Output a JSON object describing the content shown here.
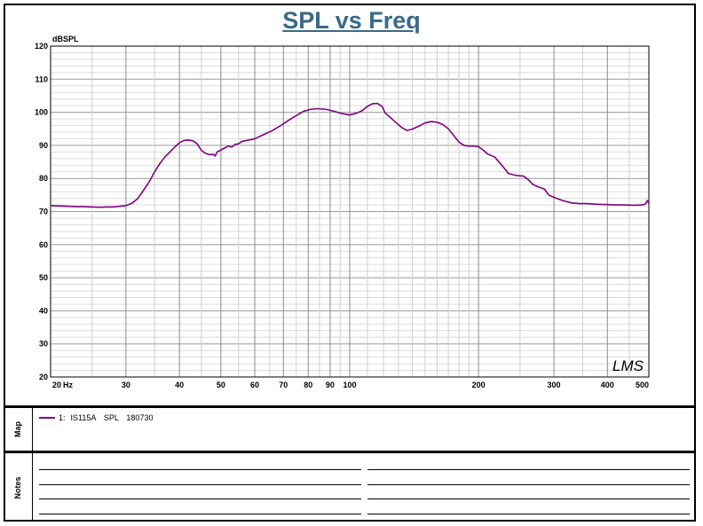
{
  "title": "SPL vs Freq",
  "watermark": "LMS",
  "map_label": "Map",
  "notes_label": "Notes",
  "legend": [
    {
      "index": "1:",
      "device": "IS115A",
      "measure": "SPL",
      "code": "180730",
      "color": "#800080"
    }
  ],
  "chart_data": {
    "type": "line",
    "title": "SPL vs Freq",
    "ylabel": "dBSPL",
    "xlabel": "Hz",
    "x_scale": "log",
    "xlim": [
      20,
      500
    ],
    "ylim": [
      20,
      120
    ],
    "grid": true,
    "y_ticks": [
      20,
      30,
      40,
      50,
      60,
      70,
      80,
      90,
      100,
      110,
      120
    ],
    "x_tick_labels": [
      {
        "value": 20,
        "label": "20"
      },
      {
        "value": 30,
        "label": "30"
      },
      {
        "value": 40,
        "label": "40"
      },
      {
        "value": 50,
        "label": "50"
      },
      {
        "value": 60,
        "label": "60"
      },
      {
        "value": 70,
        "label": "70"
      },
      {
        "value": 80,
        "label": "80"
      },
      {
        "value": 90,
        "label": "90"
      },
      {
        "value": 100,
        "label": "100"
      },
      {
        "value": 200,
        "label": "200"
      },
      {
        "value": 300,
        "label": "300"
      },
      {
        "value": 400,
        "label": "400"
      },
      {
        "value": 500,
        "label": "500"
      }
    ],
    "x_minor_grid": [
      25,
      35,
      45,
      55,
      65,
      75,
      85,
      95,
      110,
      120,
      130,
      140,
      150,
      160,
      170,
      180,
      190,
      250,
      350,
      450
    ],
    "series": [
      {
        "name": "1: IS115A SPL 180730",
        "color": "#800080",
        "points": [
          [
            20,
            71.8
          ],
          [
            21,
            71.7
          ],
          [
            22,
            71.6
          ],
          [
            23,
            71.5
          ],
          [
            24,
            71.5
          ],
          [
            25,
            71.4
          ],
          [
            26,
            71.3
          ],
          [
            27,
            71.4
          ],
          [
            28,
            71.4
          ],
          [
            29,
            71.6
          ],
          [
            30,
            71.8
          ],
          [
            31,
            72.5
          ],
          [
            32,
            74.0
          ],
          [
            33,
            76.5
          ],
          [
            34,
            79.0
          ],
          [
            35,
            82.0
          ],
          [
            36,
            84.5
          ],
          [
            37,
            86.5
          ],
          [
            38,
            88.0
          ],
          [
            39,
            89.5
          ],
          [
            40,
            90.8
          ],
          [
            41,
            91.5
          ],
          [
            42,
            91.6
          ],
          [
            43,
            91.4
          ],
          [
            44,
            90.5
          ],
          [
            45,
            88.5
          ],
          [
            46,
            87.6
          ],
          [
            47,
            87.2
          ],
          [
            48,
            87.3
          ],
          [
            48.5,
            86.8
          ],
          [
            49,
            88.0
          ],
          [
            50,
            88.6
          ],
          [
            51,
            89.2
          ],
          [
            52,
            89.8
          ],
          [
            53,
            89.5
          ],
          [
            54,
            90.3
          ],
          [
            55,
            90.5
          ],
          [
            56,
            91.2
          ],
          [
            58,
            91.6
          ],
          [
            60,
            92.0
          ],
          [
            63,
            93.3
          ],
          [
            66,
            94.5
          ],
          [
            69,
            96.0
          ],
          [
            72,
            97.6
          ],
          [
            75,
            99.0
          ],
          [
            78,
            100.3
          ],
          [
            81,
            100.9
          ],
          [
            84,
            101.1
          ],
          [
            88,
            100.9
          ],
          [
            92,
            100.3
          ],
          [
            96,
            99.6
          ],
          [
            100,
            99.2
          ],
          [
            103,
            99.6
          ],
          [
            107,
            100.5
          ],
          [
            110,
            101.8
          ],
          [
            113,
            102.6
          ],
          [
            116,
            102.7
          ],
          [
            119,
            101.8
          ],
          [
            121,
            99.8
          ],
          [
            124,
            98.6
          ],
          [
            128,
            97.0
          ],
          [
            132,
            95.5
          ],
          [
            136,
            94.5
          ],
          [
            140,
            94.9
          ],
          [
            145,
            95.8
          ],
          [
            150,
            96.8
          ],
          [
            155,
            97.2
          ],
          [
            160,
            97.0
          ],
          [
            165,
            96.3
          ],
          [
            170,
            95.0
          ],
          [
            175,
            93.0
          ],
          [
            180,
            91.0
          ],
          [
            185,
            90.0
          ],
          [
            190,
            89.8
          ],
          [
            195,
            89.8
          ],
          [
            200,
            89.6
          ],
          [
            205,
            88.6
          ],
          [
            210,
            87.4
          ],
          [
            218,
            86.5
          ],
          [
            225,
            84.5
          ],
          [
            235,
            81.5
          ],
          [
            245,
            80.9
          ],
          [
            255,
            80.7
          ],
          [
            262,
            79.5
          ],
          [
            268,
            78.2
          ],
          [
            275,
            77.5
          ],
          [
            285,
            76.8
          ],
          [
            292,
            75.0
          ],
          [
            300,
            74.3
          ],
          [
            315,
            73.3
          ],
          [
            330,
            72.6
          ],
          [
            345,
            72.4
          ],
          [
            360,
            72.4
          ],
          [
            380,
            72.2
          ],
          [
            400,
            72.1
          ],
          [
            420,
            72.0
          ],
          [
            440,
            72.0
          ],
          [
            460,
            71.9
          ],
          [
            480,
            72.0
          ],
          [
            490,
            72.2
          ],
          [
            496,
            73.3
          ],
          [
            500,
            72.4
          ]
        ]
      }
    ]
  }
}
